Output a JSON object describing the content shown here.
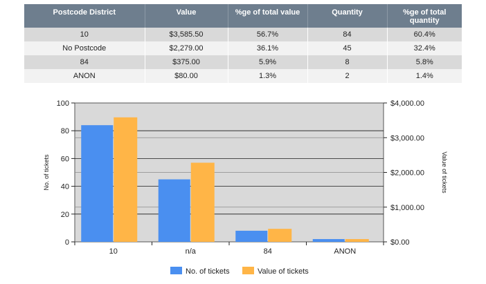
{
  "table": {
    "headers": [
      "Postcode District",
      "Value",
      "%ge of total value",
      "Quantity",
      "%ge of total quantity"
    ],
    "rows": [
      [
        "10",
        "$3,585.50",
        "56.7%",
        "84",
        "60.4%"
      ],
      [
        "No Postcode",
        "$2,279.00",
        "36.1%",
        "45",
        "32.4%"
      ],
      [
        "84",
        "$375.00",
        "5.9%",
        "8",
        "5.8%"
      ],
      [
        "ANON",
        "$80.00",
        "1.3%",
        "2",
        "1.4%"
      ]
    ]
  },
  "chart_data": {
    "type": "bar",
    "categories": [
      "10",
      "n/a",
      "84",
      "ANON"
    ],
    "series": [
      {
        "name": "No. of tickets",
        "axis": "left",
        "color": "#4a8ff0",
        "values": [
          84,
          45,
          8,
          2
        ]
      },
      {
        "name": "Value of tickets",
        "axis": "right",
        "color": "#ffb547",
        "values": [
          3585.5,
          2279,
          375,
          80
        ]
      }
    ],
    "ylabel": "No. of tickets",
    "y2label": "Value of tickets",
    "ylim": [
      0,
      100
    ],
    "y2lim": [
      0,
      4000
    ],
    "yticks": [
      "0",
      "20",
      "40",
      "60",
      "80",
      "100"
    ],
    "y2ticks": [
      "$0.00",
      "$1,000.00",
      "$2,000.00",
      "$3,000.00",
      "$4,000.00"
    ],
    "grid": true,
    "legend_position": "bottom",
    "plot_background": "#d9d9d9"
  }
}
